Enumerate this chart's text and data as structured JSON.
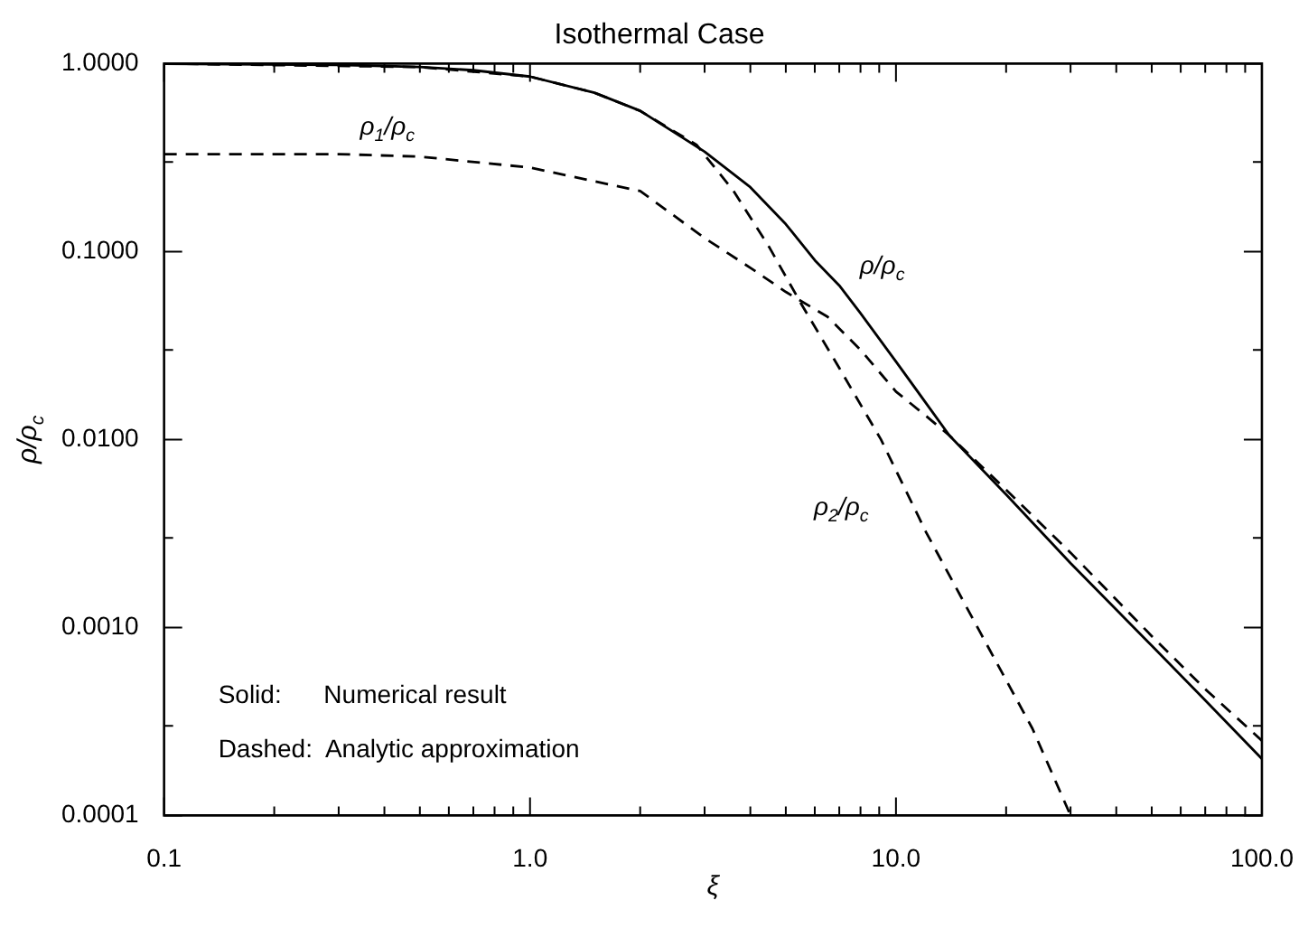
{
  "chart_data": {
    "type": "line",
    "title": "Isothermal Case",
    "xlabel": "ξ",
    "ylabel": "ρ/ρ$_{c}$",
    "log": "xy",
    "grid": false,
    "legend": false,
    "marker": "none",
    "xlim": [
      0.1,
      100
    ],
    "ylim": [
      0.0001,
      1
    ],
    "xticks": [
      {
        "value": 0.1,
        "label": "0.1"
      },
      {
        "value": 0.2,
        "label": null
      },
      {
        "value": 0.3,
        "label": null
      },
      {
        "value": 0.4,
        "label": null
      },
      {
        "value": 0.5,
        "label": null
      },
      {
        "value": 0.6,
        "label": null
      },
      {
        "value": 0.7,
        "label": null
      },
      {
        "value": 0.8,
        "label": null
      },
      {
        "value": 0.9,
        "label": null
      },
      {
        "value": 1,
        "label": "1.0"
      },
      {
        "value": 2,
        "label": null
      },
      {
        "value": 3,
        "label": null
      },
      {
        "value": 4,
        "label": null
      },
      {
        "value": 5,
        "label": null
      },
      {
        "value": 6,
        "label": null
      },
      {
        "value": 7,
        "label": null
      },
      {
        "value": 8,
        "label": null
      },
      {
        "value": 9,
        "label": null
      },
      {
        "value": 10,
        "label": "10.0"
      },
      {
        "value": 20,
        "label": null
      },
      {
        "value": 30,
        "label": null
      },
      {
        "value": 40,
        "label": null
      },
      {
        "value": 50,
        "label": null
      },
      {
        "value": 60,
        "label": null
      },
      {
        "value": 70,
        "label": null
      },
      {
        "value": 80,
        "label": null
      },
      {
        "value": 90,
        "label": null
      },
      {
        "value": 100,
        "label": "100.0"
      }
    ],
    "yticks": [
      {
        "value": 0.0001,
        "label": "0.0001"
      },
      {
        "value": 0.0003,
        "label": null
      },
      {
        "value": 0.001,
        "label": "0.0010"
      },
      {
        "value": 0.003,
        "label": null
      },
      {
        "value": 0.01,
        "label": "0.0100"
      },
      {
        "value": 0.03,
        "label": null
      },
      {
        "value": 0.1,
        "label": "0.1000"
      },
      {
        "value": 0.3,
        "label": null
      },
      {
        "value": 1,
        "label": "1.0000"
      }
    ],
    "series": [
      {
        "name": "ρ/ρ$_{c}$",
        "color": "#000000",
        "line_style": "solid",
        "x": [
          0.1,
          0.3,
          0.5,
          0.7,
          1,
          1.5,
          2,
          3,
          4,
          5,
          6,
          7,
          8,
          10,
          14,
          20,
          30,
          50,
          70,
          100
        ],
        "values": [
          0.998,
          0.985,
          0.959,
          0.922,
          0.853,
          0.7,
          0.561,
          0.34,
          0.22,
          0.14,
          0.09,
          0.066,
          0.047,
          0.026,
          0.0105,
          0.0051,
          0.0022,
          0.0008,
          0.00041,
          0.0002
        ]
      },
      {
        "name": "ρ$_{1}$/ρ$_{c}$",
        "color": "#000000",
        "line_style": "dashed",
        "x": [
          0.1,
          0.3,
          0.5,
          1,
          2,
          3,
          4,
          5,
          6.5,
          8,
          10,
          12,
          14,
          20,
          30,
          50,
          70,
          100
        ],
        "values": [
          0.33,
          0.33,
          0.32,
          0.28,
          0.21,
          0.118,
          0.082,
          0.061,
          0.045,
          0.03,
          0.018,
          0.0135,
          0.0105,
          0.0054,
          0.0025,
          0.0009,
          0.00047,
          0.00025
        ]
      },
      {
        "name": "ρ$_{2}$/ρ$_{c}$",
        "color": "#000000",
        "line_style": "dashed",
        "x": [
          0.1,
          0.5,
          1,
          1.5,
          2,
          2.85,
          3.6,
          4.5,
          5.5,
          7,
          9.1,
          12.1,
          17.1,
          23.6,
          30
        ],
        "values": [
          1,
          0.959,
          0.853,
          0.7,
          0.56,
          0.37,
          0.21,
          0.106,
          0.053,
          0.024,
          0.01,
          0.0032,
          0.00092,
          0.00029,
          0.0001
        ]
      }
    ],
    "annotations": [
      "Solid:      Numerical result",
      "Dashed:  Analytic approximation"
    ]
  }
}
